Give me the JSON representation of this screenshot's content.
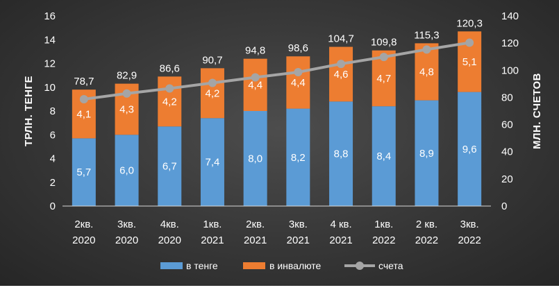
{
  "chart_data": {
    "type": "bar",
    "stacked": true,
    "categories": [
      [
        "2кв.",
        "2020"
      ],
      [
        "3кв.",
        "2020"
      ],
      [
        "4кв.",
        "2020"
      ],
      [
        "1кв.",
        "2021"
      ],
      [
        "2кв.",
        "2021"
      ],
      [
        "3кв.",
        "2021"
      ],
      [
        "4 кв.",
        "2021"
      ],
      [
        "1кв.",
        "2022"
      ],
      [
        "2 кв.",
        "2022"
      ],
      [
        "3кв.",
        "2022"
      ]
    ],
    "series": [
      {
        "name": "в тенге",
        "axis": "left",
        "color": "#5b9bd5",
        "values": [
          5.7,
          6.0,
          6.7,
          7.4,
          8.0,
          8.2,
          8.8,
          8.4,
          8.9,
          9.6
        ],
        "labels": [
          "5,7",
          "6,0",
          "6,7",
          "7,4",
          "8,0",
          "8,2",
          "8,8",
          "8,4",
          "8,9",
          "9,6"
        ]
      },
      {
        "name": "в инвалюте",
        "axis": "left",
        "color": "#ed7d31",
        "values": [
          4.1,
          4.3,
          4.2,
          4.2,
          4.4,
          4.4,
          4.6,
          4.7,
          4.8,
          5.1
        ],
        "labels": [
          "4,1",
          "4,3",
          "4,2",
          "4,2",
          "4,4",
          "4,4",
          "4,6",
          "4,7",
          "4,8",
          "5,1"
        ]
      },
      {
        "name": "счета",
        "type": "line",
        "axis": "right",
        "color": "#a5a5a5",
        "values": [
          78.7,
          82.9,
          86.6,
          90.7,
          94.8,
          98.6,
          104.7,
          109.8,
          115.3,
          120.3
        ],
        "labels": [
          "78,7",
          "82,9",
          "86,6",
          "90,7",
          "94,8",
          "98,6",
          "104,7",
          "109,8",
          "115,3",
          "120,3"
        ]
      }
    ],
    "ylabel": "ТРЛН. ТЕНГЕ",
    "ylabel_right": "МЛН. СЧЕТОВ",
    "ylim": [
      0,
      16
    ],
    "yticks": [
      "0",
      "2",
      "4",
      "6",
      "8",
      "10",
      "12",
      "14",
      "16"
    ],
    "ylim_right": [
      0,
      140
    ],
    "yticks_right": [
      "0",
      "20",
      "40",
      "60",
      "80",
      "100",
      "120",
      "140"
    ],
    "grid": false,
    "legend_position": "bottom"
  }
}
